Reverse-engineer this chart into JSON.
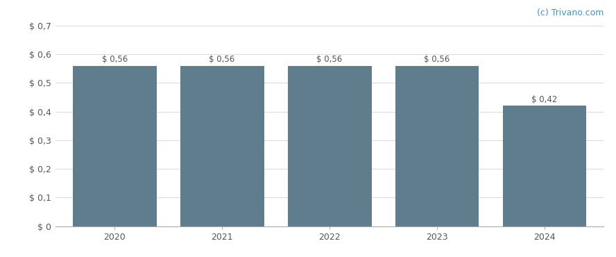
{
  "categories": [
    "2020",
    "2021",
    "2022",
    "2023",
    "2024"
  ],
  "values": [
    0.56,
    0.56,
    0.56,
    0.56,
    0.42
  ],
  "bar_color": "#5f7d8c",
  "bar_labels": [
    "$ 0,56",
    "$ 0,56",
    "$ 0,56",
    "$ 0,56",
    "$ 0,42"
  ],
  "ytick_labels": [
    "$ 0",
    "$ 0,1",
    "$ 0,2",
    "$ 0,3",
    "$ 0,4",
    "$ 0,5",
    "$ 0,6",
    "$ 0,7"
  ],
  "ytick_values": [
    0.0,
    0.1,
    0.2,
    0.3,
    0.4,
    0.5,
    0.6,
    0.7
  ],
  "ylim": [
    0,
    0.7
  ],
  "background_color": "#ffffff",
  "grid_color": "#d8d8d8",
  "watermark": "(c) Trivano.com",
  "bar_label_fontsize": 8.5,
  "tick_fontsize": 9,
  "watermark_fontsize": 9,
  "watermark_color": "#4a90b8"
}
